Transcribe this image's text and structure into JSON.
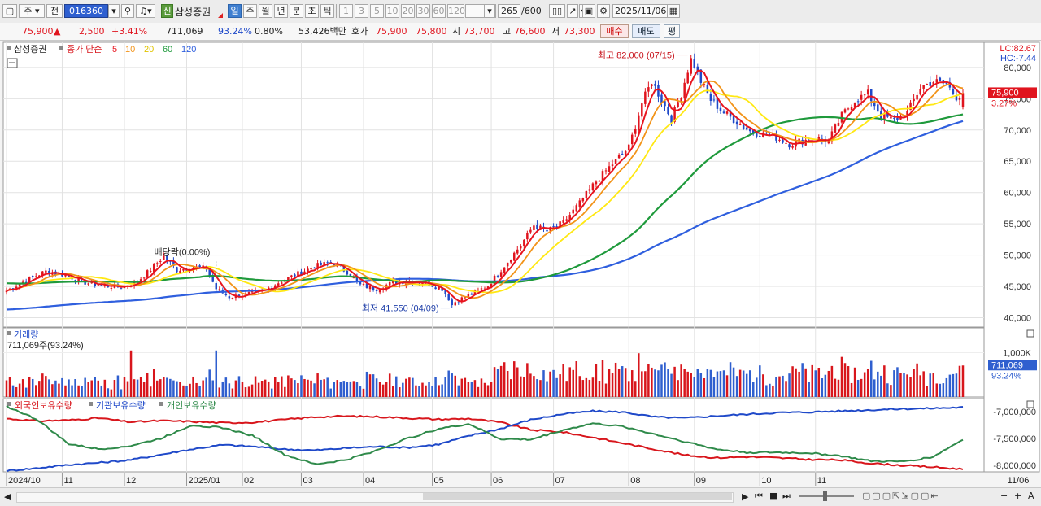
{
  "toolbar": {
    "market_label": "주",
    "prev_label": "전",
    "stock_code": "016360",
    "stock_name": "삼성증권",
    "new_badge": "신",
    "periods": [
      "일",
      "주",
      "월",
      "년",
      "분",
      "초",
      "틱"
    ],
    "active_period": "일",
    "intervals": [
      "1",
      "3",
      "5",
      "10",
      "20",
      "30",
      "60",
      "120"
    ],
    "page_count": "265",
    "page_total": "/600",
    "date": "2025/11/06"
  },
  "quote": {
    "price": "75,900",
    "change": "2,500",
    "change_pct": "+3.41%",
    "volume": "711,069",
    "volume_ratio": "93.24%",
    "turnover_pct": "0.80%",
    "amount": "53,426백만",
    "bid_ask_label": "호가",
    "ask": "75,900",
    "bid": "75,800",
    "open_label": "시",
    "open": "73,700",
    "high_label": "고",
    "high": "76,600",
    "low_label": "저",
    "low": "73,300",
    "buy_label": "매수",
    "sell_label": "매도",
    "eval_label": "평"
  },
  "chart_data": {
    "type": "candlestick",
    "price_panel": {
      "legend_stock": "삼성증권",
      "legend_ma_prefix": "종가 단순",
      "ma_periods": [
        {
          "period": "5",
          "color": "#e8141e"
        },
        {
          "period": "10",
          "color": "#f29318"
        },
        {
          "period": "20",
          "color": "#ffe812"
        },
        {
          "period": "60",
          "color": "#1f9a3c"
        },
        {
          "period": "120",
          "color": "#2f5fde"
        }
      ],
      "y_ticks": [
        "80,000",
        "75,000",
        "70,000",
        "65,000",
        "60,000",
        "55,000",
        "50,000",
        "45,000",
        "40,000"
      ],
      "y_tick_values": [
        80000,
        75000,
        70000,
        65000,
        60000,
        55000,
        50000,
        45000,
        40000
      ],
      "ylim": [
        38500,
        83500
      ],
      "lc_label": "LC:82.67",
      "hc_label": "HC:-7.44",
      "last_price_tag": "75,900",
      "last_pct_tag": "3.27%",
      "annotations": {
        "high": "최고 82,000 (07/15)",
        "low": "최저 41,550 (04/09)",
        "dividend": "배당락(0.00%)"
      },
      "anchors": [
        {
          "d": 0,
          "v": 44300
        },
        {
          "d": 6,
          "v": 46000
        },
        {
          "d": 12,
          "v": 47400
        },
        {
          "d": 18,
          "v": 46800
        },
        {
          "d": 24,
          "v": 45600
        },
        {
          "d": 30,
          "v": 45100
        },
        {
          "d": 35,
          "v": 44900
        },
        {
          "d": 40,
          "v": 45800
        },
        {
          "d": 44,
          "v": 47700
        },
        {
          "d": 48,
          "v": 49800
        },
        {
          "d": 52,
          "v": 47600
        },
        {
          "d": 56,
          "v": 48100
        },
        {
          "d": 61,
          "v": 47900
        },
        {
          "d": 64,
          "v": 44600
        },
        {
          "d": 68,
          "v": 43300
        },
        {
          "d": 73,
          "v": 43700
        },
        {
          "d": 78,
          "v": 44200
        },
        {
          "d": 83,
          "v": 45600
        },
        {
          "d": 88,
          "v": 46800
        },
        {
          "d": 94,
          "v": 48200
        },
        {
          "d": 99,
          "v": 48800
        },
        {
          "d": 104,
          "v": 47300
        },
        {
          "d": 108,
          "v": 45200
        },
        {
          "d": 113,
          "v": 44600
        },
        {
          "d": 118,
          "v": 45600
        },
        {
          "d": 123,
          "v": 45900
        },
        {
          "d": 128,
          "v": 45600
        },
        {
          "d": 133,
          "v": 44600
        },
        {
          "d": 136,
          "v": 42300
        },
        {
          "d": 138,
          "v": 42800
        },
        {
          "d": 142,
          "v": 43800
        },
        {
          "d": 147,
          "v": 45100
        },
        {
          "d": 152,
          "v": 48300
        },
        {
          "d": 157,
          "v": 51600
        },
        {
          "d": 161,
          "v": 54800
        },
        {
          "d": 165,
          "v": 53800
        },
        {
          "d": 170,
          "v": 55200
        },
        {
          "d": 175,
          "v": 58300
        },
        {
          "d": 180,
          "v": 61800
        },
        {
          "d": 185,
          "v": 64600
        },
        {
          "d": 190,
          "v": 67200
        },
        {
          "d": 194,
          "v": 74300
        },
        {
          "d": 197,
          "v": 77800
        },
        {
          "d": 200,
          "v": 74800
        },
        {
          "d": 203,
          "v": 71800
        },
        {
          "d": 206,
          "v": 75800
        },
        {
          "d": 209,
          "v": 81500
        },
        {
          "d": 212,
          "v": 77800
        },
        {
          "d": 215,
          "v": 74800
        },
        {
          "d": 219,
          "v": 72800
        },
        {
          "d": 223,
          "v": 71300
        },
        {
          "d": 227,
          "v": 69800
        },
        {
          "d": 231,
          "v": 69300
        },
        {
          "d": 235,
          "v": 68800
        },
        {
          "d": 239,
          "v": 67800
        },
        {
          "d": 243,
          "v": 68300
        },
        {
          "d": 247,
          "v": 68600
        },
        {
          "d": 251,
          "v": 68300
        },
        {
          "d": 255,
          "v": 72300
        },
        {
          "d": 259,
          "v": 74800
        },
        {
          "d": 263,
          "v": 75800
        },
        {
          "d": 267,
          "v": 72300
        },
        {
          "d": 271,
          "v": 71600
        },
        {
          "d": 275,
          "v": 72800
        },
        {
          "d": 279,
          "v": 76800
        },
        {
          "d": 283,
          "v": 77800
        },
        {
          "d": 287,
          "v": 77300
        },
        {
          "d": 290,
          "v": 75300
        },
        {
          "d": 292,
          "v": 75900
        }
      ]
    },
    "volume_panel": {
      "title": "거래량",
      "subtitle": "711,069주(93.24%)",
      "tick": "1,000K",
      "tick_value": 1000000,
      "ylim": [
        0,
        1450000
      ],
      "last_tag": "711,069",
      "last_pct": "93.24%"
    },
    "holdings_panel": {
      "series": [
        {
          "name": "외국인보유수량",
          "color": "#d8161c",
          "values": [
            -7130000,
            -7175000,
            -7160000,
            -7120000,
            -7195000,
            -7170000,
            -7185000,
            -7210000,
            -7200000,
            -7150000,
            -7100000,
            -7085000,
            -7095000,
            -7120000,
            -7145000,
            -7130000,
            -7200000,
            -7340000,
            -7380000,
            -7480000,
            -7590000,
            -7700000,
            -7810000,
            -7860000,
            -7840000,
            -7860000,
            -7890000,
            -7900000,
            -7960000,
            -8000000,
            -8030000,
            -8070000
          ]
        },
        {
          "name": "기관보유수량",
          "color": "#1f49c9",
          "values": [
            -8100000,
            -8050000,
            -7990000,
            -7950000,
            -7900000,
            -7800000,
            -7700000,
            -7620000,
            -7650000,
            -7700000,
            -7720000,
            -7680000,
            -7650000,
            -7670000,
            -7610000,
            -7450000,
            -7320000,
            -7150000,
            -7050000,
            -6990000,
            -7010000,
            -7100000,
            -7120000,
            -7080000,
            -7050000,
            -7020000,
            -7010000,
            -6990000,
            -6970000,
            -6950000,
            -6940000,
            -6920000
          ]
        },
        {
          "name": "개인보유수량",
          "color": "#2f8a4a",
          "values": [
            -6900000,
            -7150000,
            -7600000,
            -7700000,
            -7640000,
            -7500000,
            -7250000,
            -7300000,
            -7450000,
            -7800000,
            -7980000,
            -7900000,
            -7720000,
            -7500000,
            -7320000,
            -7230000,
            -7510000,
            -7520000,
            -7350000,
            -7220000,
            -7280000,
            -7420000,
            -7560000,
            -7700000,
            -7760000,
            -7760000,
            -7770000,
            -7820000,
            -7920000,
            -7930000,
            -7850000,
            -7520000
          ]
        }
      ],
      "y_ticks": [
        "-7,000,000",
        "-7,500,000",
        "-8,000,000"
      ],
      "y_tick_values": [
        -7000000,
        -7500000,
        -8000000
      ],
      "ylim": [
        -8120000,
        -6850000
      ]
    },
    "x_labels": [
      {
        "label": "2024/10",
        "d": 0
      },
      {
        "label": "11",
        "d": 17
      },
      {
        "label": "12",
        "d": 36
      },
      {
        "label": "2025/01",
        "d": 55
      },
      {
        "label": "02",
        "d": 72
      },
      {
        "label": "03",
        "d": 90
      },
      {
        "label": "04",
        "d": 109
      },
      {
        "label": "05",
        "d": 130
      },
      {
        "label": "06",
        "d": 148
      },
      {
        "label": "07",
        "d": 167
      },
      {
        "label": "08",
        "d": 190
      },
      {
        "label": "09",
        "d": 210
      },
      {
        "label": "10",
        "d": 230
      },
      {
        "label": "11",
        "d": 247
      }
    ],
    "x_last_label": "11/06"
  }
}
